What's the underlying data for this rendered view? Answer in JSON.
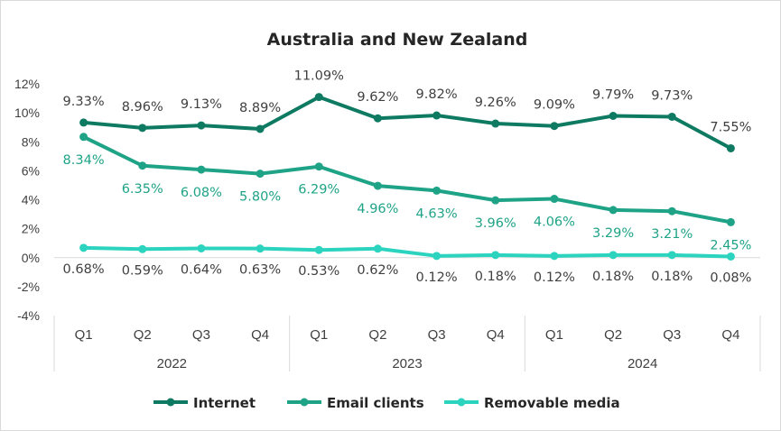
{
  "chart_data": {
    "type": "line",
    "title": "Australia and New Zealand",
    "categories": [
      "Q1",
      "Q2",
      "Q3",
      "Q4",
      "Q1",
      "Q2",
      "Q3",
      "Q4",
      "Q1",
      "Q2",
      "Q3",
      "Q4"
    ],
    "groups": [
      {
        "label": "2022",
        "count": 4
      },
      {
        "label": "2023",
        "count": 4
      },
      {
        "label": "2024",
        "count": 4
      }
    ],
    "y_ticks": [
      "12%",
      "10%",
      "8%",
      "6%",
      "4%",
      "2%",
      "0%",
      "-2%",
      "-4%"
    ],
    "ylim": [
      -4,
      12
    ],
    "grid": false,
    "legend_position": "bottom",
    "series": [
      {
        "name": "Internet",
        "color": "#0e7a62",
        "label_color": "#404040",
        "values": [
          9.33,
          8.96,
          9.13,
          8.89,
          11.09,
          9.62,
          9.82,
          9.26,
          9.09,
          9.79,
          9.73,
          7.55
        ],
        "labels": [
          "9.33%",
          "8.96%",
          "9.13%",
          "8.89%",
          "11.09%",
          "9.62%",
          "9.82%",
          "9.26%",
          "9.09%",
          "9.79%",
          "9.73%",
          "7.55%"
        ]
      },
      {
        "name": "Email clients",
        "color": "#1fa387",
        "label_color": "#1fa387",
        "values": [
          8.34,
          6.35,
          6.08,
          5.8,
          6.29,
          4.96,
          4.63,
          3.96,
          4.06,
          3.29,
          3.21,
          2.45
        ],
        "labels": [
          "8.34%",
          "6.35%",
          "6.08%",
          "5.80%",
          "6.29%",
          "4.96%",
          "4.63%",
          "3.96%",
          "4.06%",
          "3.29%",
          "3.21%",
          "2.45%"
        ]
      },
      {
        "name": "Removable media",
        "color": "#2cd4bf",
        "label_color": "#404040",
        "values": [
          0.68,
          0.59,
          0.64,
          0.63,
          0.53,
          0.62,
          0.12,
          0.18,
          0.12,
          0.18,
          0.18,
          0.08
        ],
        "labels": [
          "0.68%",
          "0.59%",
          "0.64%",
          "0.63%",
          "0.53%",
          "0.62%",
          "0.12%",
          "0.18%",
          "0.12%",
          "0.18%",
          "0.18%",
          "0.08%"
        ]
      }
    ]
  }
}
